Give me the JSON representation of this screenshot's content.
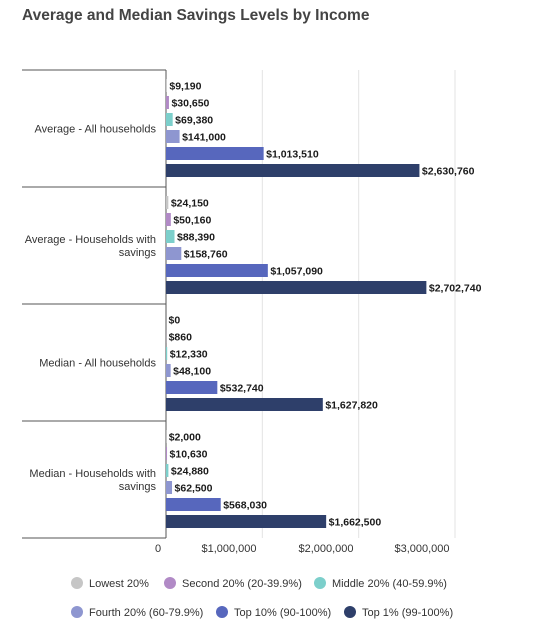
{
  "chart_data": {
    "type": "bar",
    "orientation": "horizontal",
    "title": "Average and Median Savings Levels by Income",
    "categories": [
      [
        "Average - All households"
      ],
      [
        "Average - Households with",
        "savings"
      ],
      [
        "Median - All households"
      ],
      [
        "Median - Households with",
        "savings"
      ]
    ],
    "series": [
      {
        "name": "Lowest 20%",
        "color": "#c6c6c6",
        "values": [
          9190,
          24150,
          0,
          2000
        ],
        "labels": [
          "$9,190",
          "$24,150",
          "$0",
          "$2,000"
        ]
      },
      {
        "name": "Second 20% (20-39.9%)",
        "color": "#b18ac6",
        "values": [
          30650,
          50160,
          860,
          10630
        ],
        "labels": [
          "$30,650",
          "$50,160",
          "$860",
          "$10,630"
        ]
      },
      {
        "name": "Middle 20% (40-59.9%)",
        "color": "#7ccfcb",
        "values": [
          69380,
          88390,
          12330,
          24880
        ],
        "labels": [
          "$69,380",
          "$88,390",
          "$12,330",
          "$24,880"
        ]
      },
      {
        "name": "Fourth 20% (60-79.9%)",
        "color": "#8e96d0",
        "values": [
          141000,
          158760,
          48100,
          62500
        ],
        "labels": [
          "$141,000",
          "$158,760",
          "$48,100",
          "$62,500"
        ]
      },
      {
        "name": "Top 10% (90-100%)",
        "color": "#5767bd",
        "values": [
          1013510,
          1057090,
          532740,
          568030
        ],
        "labels": [
          "$1,013,510",
          "$1,057,090",
          "$532,740",
          "$568,030"
        ]
      },
      {
        "name": "Top 1% (99-100%)",
        "color": "#2e3f6a",
        "values": [
          2630760,
          2702740,
          1627820,
          1662500
        ],
        "labels": [
          "$2,630,760",
          "$2,702,740",
          "$1,627,820",
          "$1,662,500"
        ]
      }
    ],
    "xlim": [
      0,
      3000000
    ],
    "x_ticks": [
      0,
      1000000,
      2000000,
      3000000
    ],
    "x_tick_labels": [
      "0",
      "$1,000,000",
      "$2,000,000",
      "$3,000,000"
    ],
    "grid": true,
    "legend_position": "bottom"
  }
}
